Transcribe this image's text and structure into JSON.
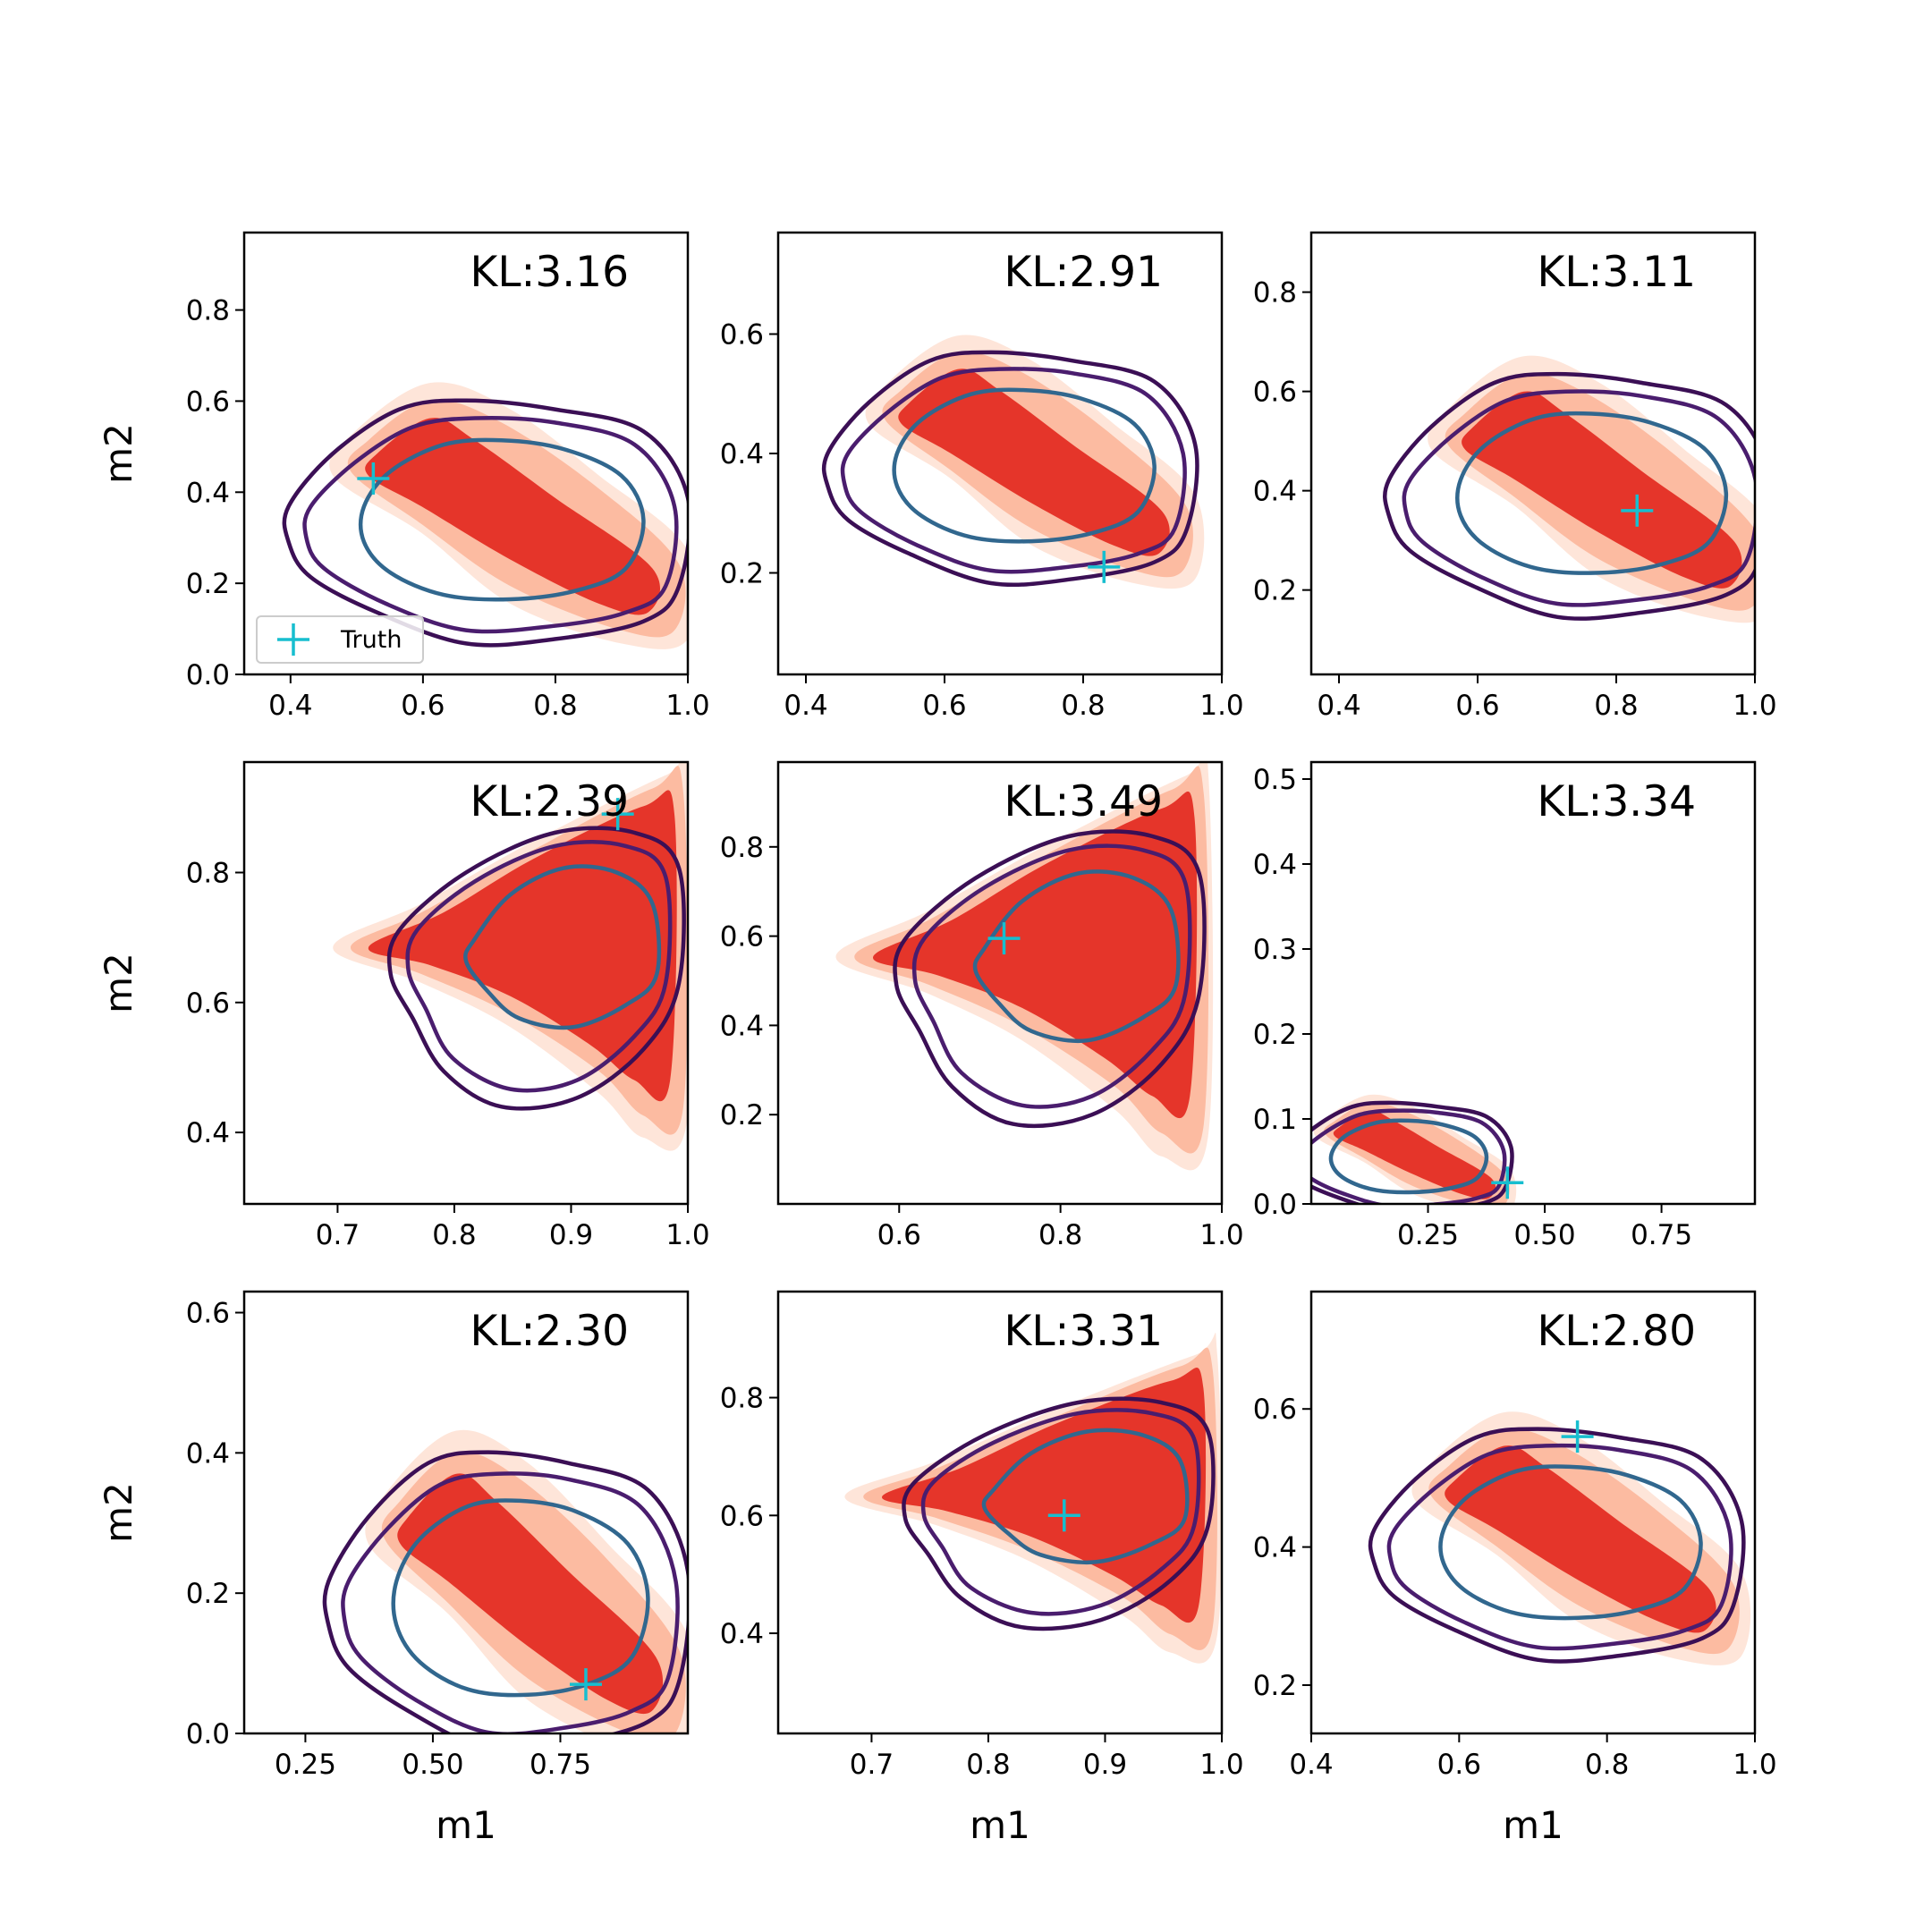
{
  "colors": {
    "fill_outer": "#fee5d9",
    "fill_mid": "#fcbba1",
    "fill_inner": "#e5352a",
    "contour_outer": "#3b0f55",
    "contour_mid": "#4a1d6e",
    "contour_inner": "#31678e",
    "truth": "#17becf"
  },
  "chart_data": [
    {
      "type": "contour",
      "annotation": "KL:3.16",
      "xlabel": "",
      "ylabel": "m2",
      "xlim": [
        0.33,
        1.0
      ],
      "ylim": [
        0.0,
        0.97
      ],
      "xticks": [
        "0.4",
        "0.6",
        "0.8",
        "1.0"
      ],
      "xtick_values": [
        0.4,
        0.6,
        0.8,
        1.0
      ],
      "yticks": [
        "0.0",
        "0.2",
        "0.4",
        "0.6",
        "0.8"
      ],
      "ytick_values": [
        0.0,
        0.2,
        0.4,
        0.6,
        0.8
      ],
      "truth": [
        0.525,
        0.43
      ],
      "legend": {
        "label": "Truth",
        "position": "lower left"
      }
    },
    {
      "type": "contour",
      "annotation": "KL:2.91",
      "xlabel": "",
      "ylabel": "",
      "xlim": [
        0.36,
        1.0
      ],
      "ylim": [
        0.03,
        0.77
      ],
      "xticks": [
        "0.4",
        "0.6",
        "0.8",
        "1.0"
      ],
      "xtick_values": [
        0.4,
        0.6,
        0.8,
        1.0
      ],
      "yticks": [
        "0.2",
        "0.4",
        "0.6"
      ],
      "ytick_values": [
        0.2,
        0.4,
        0.6
      ],
      "truth": [
        0.83,
        0.21
      ]
    },
    {
      "type": "contour",
      "annotation": "KL:3.11",
      "xlabel": "",
      "ylabel": "",
      "xlim": [
        0.36,
        1.0
      ],
      "ylim": [
        0.03,
        0.92
      ],
      "xticks": [
        "0.4",
        "0.6",
        "0.8",
        "1.0"
      ],
      "xtick_values": [
        0.4,
        0.6,
        0.8,
        1.0
      ],
      "yticks": [
        "0.2",
        "0.4",
        "0.6",
        "0.8"
      ],
      "ytick_values": [
        0.2,
        0.4,
        0.6,
        0.8
      ],
      "truth": [
        0.83,
        0.36
      ]
    },
    {
      "type": "contour",
      "annotation": "KL:2.39",
      "xlabel": "",
      "ylabel": "m2",
      "xlim": [
        0.62,
        1.0
      ],
      "ylim": [
        0.29,
        0.97
      ],
      "xticks": [
        "0.7",
        "0.8",
        "0.9",
        "1.0"
      ],
      "xtick_values": [
        0.7,
        0.8,
        0.9,
        1.0
      ],
      "yticks": [
        "0.4",
        "0.6",
        "0.8"
      ],
      "ytick_values": [
        0.4,
        0.6,
        0.8
      ],
      "truth": [
        0.94,
        0.89
      ]
    },
    {
      "type": "contour",
      "annotation": "KL:3.49",
      "xlabel": "",
      "ylabel": "",
      "xlim": [
        0.45,
        1.0
      ],
      "ylim": [
        0.0,
        0.99
      ],
      "xticks": [
        "0.6",
        "0.8",
        "1.0"
      ],
      "xtick_values": [
        0.6,
        0.8,
        1.0
      ],
      "yticks": [
        "0.2",
        "0.4",
        "0.6",
        "0.8"
      ],
      "ytick_values": [
        0.2,
        0.4,
        0.6,
        0.8
      ],
      "truth": [
        0.73,
        0.595
      ]
    },
    {
      "type": "contour",
      "annotation": "KL:3.34",
      "xlabel": "",
      "ylabel": "",
      "xlim": [
        0.0,
        0.95
      ],
      "ylim": [
        0.0,
        0.52
      ],
      "xticks": [
        "0.25",
        "0.50",
        "0.75"
      ],
      "xtick_values": [
        0.25,
        0.5,
        0.75
      ],
      "yticks": [
        "0.0",
        "0.1",
        "0.2",
        "0.3",
        "0.4",
        "0.5"
      ],
      "ytick_values": [
        0.0,
        0.1,
        0.2,
        0.3,
        0.4,
        0.5
      ],
      "truth": [
        0.42,
        0.025
      ]
    },
    {
      "type": "contour",
      "annotation": "KL:2.30",
      "xlabel": "m1",
      "ylabel": "m2",
      "xlim": [
        0.13,
        1.0
      ],
      "ylim": [
        0.0,
        0.63
      ],
      "xticks": [
        "0.25",
        "0.50",
        "0.75"
      ],
      "xtick_values": [
        0.25,
        0.5,
        0.75
      ],
      "yticks": [
        "0.0",
        "0.2",
        "0.4",
        "0.6"
      ],
      "ytick_values": [
        0.0,
        0.2,
        0.4,
        0.6
      ],
      "truth": [
        0.8,
        0.07
      ]
    },
    {
      "type": "contour",
      "annotation": "KL:3.31",
      "xlabel": "m1",
      "ylabel": "",
      "xlim": [
        0.62,
        1.0
      ],
      "ylim": [
        0.23,
        0.98
      ],
      "xticks": [
        "0.7",
        "0.8",
        "0.9",
        "1.0"
      ],
      "xtick_values": [
        0.7,
        0.8,
        0.9,
        1.0
      ],
      "yticks": [
        "0.4",
        "0.6",
        "0.8"
      ],
      "ytick_values": [
        0.4,
        0.6,
        0.8
      ],
      "truth": [
        0.865,
        0.6
      ]
    },
    {
      "type": "contour",
      "annotation": "KL:2.80",
      "xlabel": "m1",
      "ylabel": "",
      "xlim": [
        0.4,
        1.0
      ],
      "ylim": [
        0.13,
        0.77
      ],
      "xticks": [
        "0.4",
        "0.6",
        "0.8",
        "1.0"
      ],
      "xtick_values": [
        0.4,
        0.6,
        0.8,
        1.0
      ],
      "yticks": [
        "0.2",
        "0.4",
        "0.6"
      ],
      "ytick_values": [
        0.2,
        0.4,
        0.6
      ],
      "truth": [
        0.76,
        0.56
      ]
    }
  ]
}
